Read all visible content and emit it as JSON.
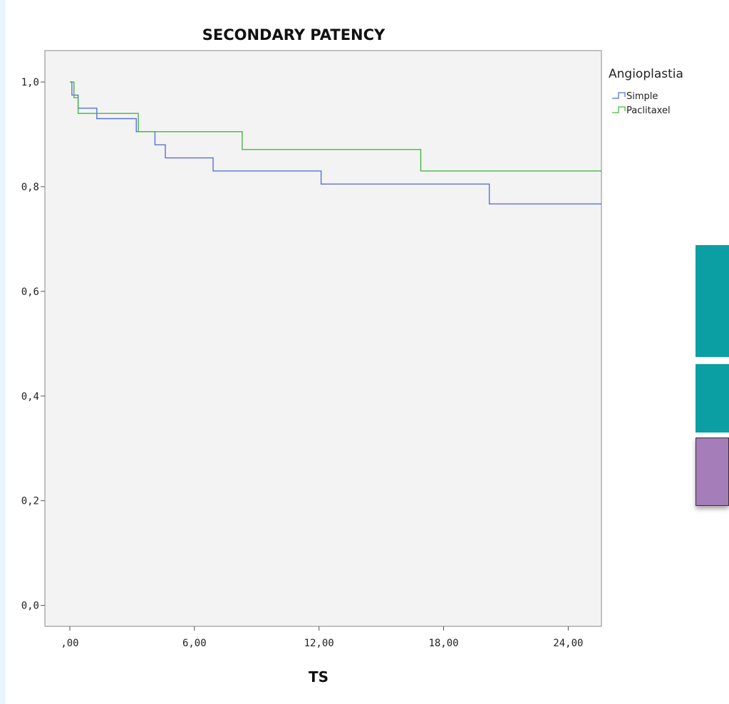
{
  "chart_data": {
    "type": "line",
    "step": true,
    "title": "SECONDARY PATENCY",
    "xlabel": "TS",
    "ylabel": "",
    "xlim": [
      -1.2,
      25.6
    ],
    "ylim": [
      -0.04,
      1.06
    ],
    "x_ticks": [
      0,
      6,
      12,
      18,
      24
    ],
    "x_tick_labels": [
      ",00",
      "6,00",
      "12,00",
      "18,00",
      "24,00"
    ],
    "y_ticks": [
      0,
      0.2,
      0.4,
      0.6,
      0.8,
      1.0
    ],
    "y_tick_labels": [
      "0,0",
      "0,2",
      "0,4",
      "0,6",
      "0,8",
      "1,0"
    ],
    "grid": false,
    "legend": {
      "title": "Angioplastia",
      "position": "top-right"
    },
    "series": [
      {
        "name": "Simple",
        "color": "#5b6fd6",
        "x": [
          0,
          0.1,
          0.4,
          1.3,
          3.2,
          4.1,
          4.6,
          6.9,
          12.1,
          20.2,
          25.6
        ],
        "y": [
          1.0,
          0.975,
          0.95,
          0.93,
          0.905,
          0.88,
          0.855,
          0.83,
          0.805,
          0.767,
          0.767
        ]
      },
      {
        "name": "Paclitaxel",
        "color": "#48b548",
        "x": [
          0,
          0.2,
          0.4,
          3.3,
          8.3,
          16.9,
          25.6
        ],
        "y": [
          1.0,
          0.97,
          0.94,
          0.905,
          0.871,
          0.83,
          0.83
        ]
      }
    ]
  }
}
